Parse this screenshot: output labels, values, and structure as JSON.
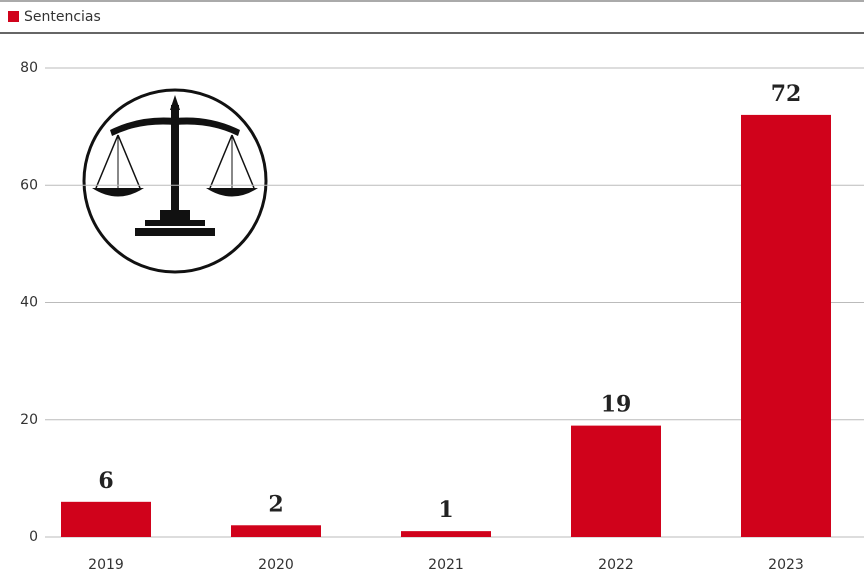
{
  "chart_data": {
    "type": "bar",
    "categories": [
      "2019",
      "2020",
      "2021",
      "2022",
      "2023"
    ],
    "series": [
      {
        "name": "Sentencias",
        "color": "#d0021b",
        "values": [
          6,
          2,
          1,
          19,
          72
        ]
      }
    ],
    "ylim": [
      0,
      80
    ],
    "yticks": [
      0,
      20,
      40,
      60,
      80
    ],
    "grid": true,
    "legend": "top-left"
  }
}
